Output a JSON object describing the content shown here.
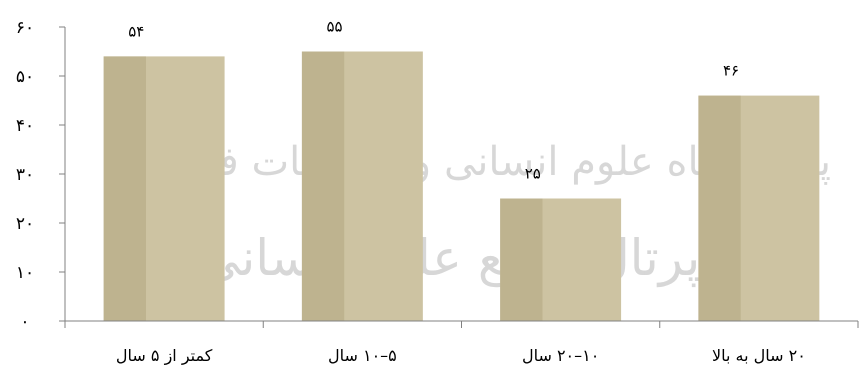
{
  "watermark": {
    "line1": "پژوهشگاه علوم انسانی و مطالعات فرهنگی",
    "line2": "پرتال جامع علوم انسانی"
  },
  "chart_data": {
    "type": "bar",
    "categories": [
      "کمتر از ۵ سال",
      "۵–۱۰ سال",
      "۱۰–۲۰ سال",
      "۲۰ سال به بالا"
    ],
    "values": [
      54,
      55,
      25,
      46
    ],
    "data_labels": [
      "۵۴",
      "۵۵",
      "۲۵",
      "۴۶"
    ],
    "ylim": [
      0,
      60
    ],
    "y_ticks": [
      0,
      10,
      20,
      30,
      40,
      50,
      60
    ],
    "y_tick_labels": [
      "۰",
      "۱۰",
      "۲۰",
      "۳۰",
      "۴۰",
      "۵۰",
      "۶۰"
    ],
    "title": "",
    "xlabel": "",
    "ylabel": "",
    "grid": false,
    "bar_color": "#cdc3a2",
    "bar_shadow_color": "#b8ad88",
    "axis_color": "#808080"
  }
}
